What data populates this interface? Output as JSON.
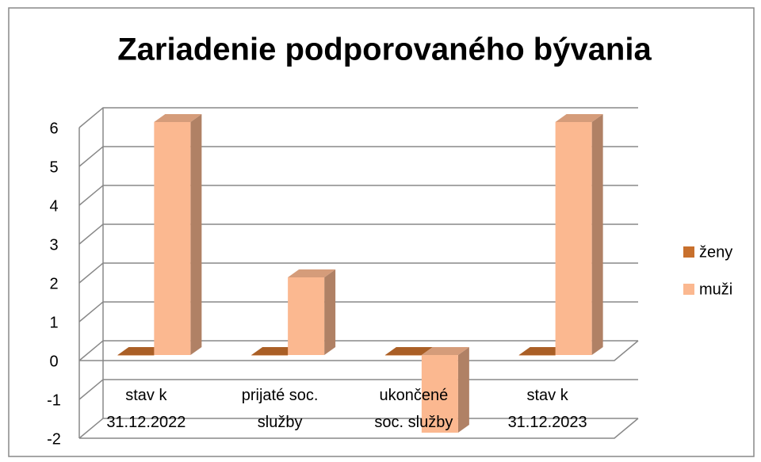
{
  "chart_data": {
    "type": "bar3d",
    "title": "Zariadenie podporovaného bývania",
    "categories": [
      "stav k\n31.12.2022",
      "prijaté soc.\nslužby",
      "ukončené\nsoc. služby",
      "stav k\n31.12.2023"
    ],
    "series": [
      {
        "name": "ženy",
        "color": "#c8702d",
        "values": [
          0,
          0,
          0,
          0
        ]
      },
      {
        "name": "muži",
        "color": "#fbb890",
        "values": [
          6,
          2,
          -2,
          6
        ]
      }
    ],
    "ylim": [
      -2,
      6
    ],
    "yticks": [
      -2,
      -1,
      0,
      1,
      2,
      3,
      4,
      5,
      6
    ],
    "grid": true,
    "legend": "right"
  }
}
